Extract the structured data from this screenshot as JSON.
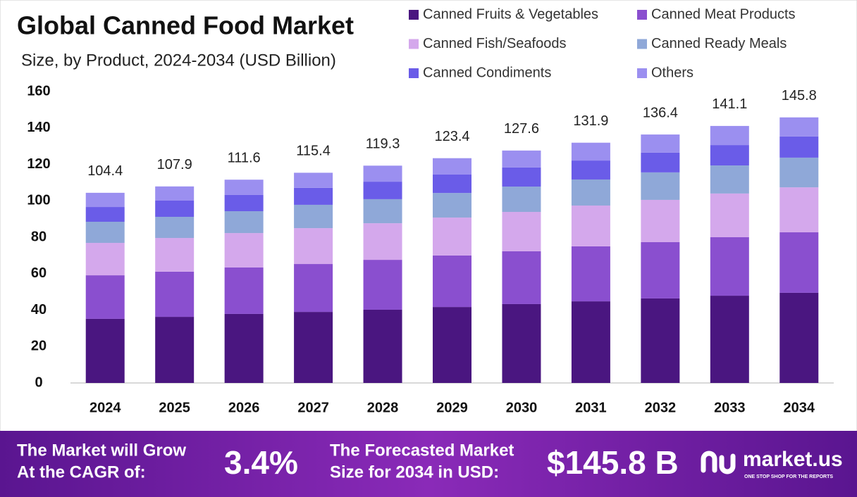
{
  "chart_data": {
    "type": "stacked_bar",
    "title": "Global Canned Food Market",
    "subtitle": "Size, by Product, 2024-2034 (USD Billion)",
    "categories": [
      "2024",
      "2025",
      "2026",
      "2027",
      "2028",
      "2029",
      "2030",
      "2031",
      "2032",
      "2033",
      "2034"
    ],
    "series": [
      {
        "name": "Canned Fruits & Vegetables",
        "color": "#4a1680",
        "values": [
          35.2,
          36.3,
          37.9,
          39.0,
          40.2,
          41.7,
          43.3,
          44.8,
          46.4,
          47.9,
          49.5
        ]
      },
      {
        "name": "Canned Meat Products",
        "color": "#8a4fcf",
        "values": [
          23.9,
          24.8,
          25.5,
          26.3,
          27.4,
          28.3,
          29.0,
          30.2,
          30.9,
          32.1,
          33.2
        ]
      },
      {
        "name": "Canned Fish/Seafoods",
        "color": "#d4a8ec",
        "values": [
          17.8,
          18.5,
          18.9,
          19.7,
          20.1,
          20.8,
          21.6,
          22.4,
          23.2,
          24.0,
          24.7
        ]
      },
      {
        "name": "Canned Ready Meals",
        "color": "#8fa8d8",
        "values": [
          11.6,
          11.6,
          12.0,
          12.8,
          13.2,
          13.5,
          13.9,
          14.3,
          15.1,
          15.4,
          16.3
        ]
      },
      {
        "name": "Canned Condiments",
        "color": "#6a5ce8",
        "values": [
          8.1,
          8.9,
          8.9,
          9.3,
          9.6,
          10.1,
          10.5,
          10.4,
          10.8,
          11.2,
          11.6
        ]
      },
      {
        "name": "Others",
        "color": "#9b8ff0",
        "values": [
          7.8,
          7.8,
          8.4,
          8.3,
          8.8,
          9.0,
          9.3,
          9.8,
          10.0,
          10.5,
          10.5
        ]
      }
    ],
    "totals": [
      104.4,
      107.9,
      111.6,
      115.4,
      119.3,
      123.4,
      127.6,
      131.9,
      136.4,
      141.1,
      145.8
    ],
    "ylim": [
      0,
      160
    ],
    "yticks": [
      0,
      20,
      40,
      60,
      80,
      100,
      120,
      140,
      160
    ],
    "grid": false
  },
  "footer": {
    "cagr_text_1": "The Market will Grow",
    "cagr_text_2": "At the CAGR of:",
    "cagr_value": "3.4%",
    "forecast_text_1": "The Forecasted Market",
    "forecast_text_2": "Size for 2034 in USD:",
    "forecast_value": "$145.8 B",
    "brand": "market.us",
    "tagline": "ONE STOP SHOP FOR THE REPORTS"
  }
}
